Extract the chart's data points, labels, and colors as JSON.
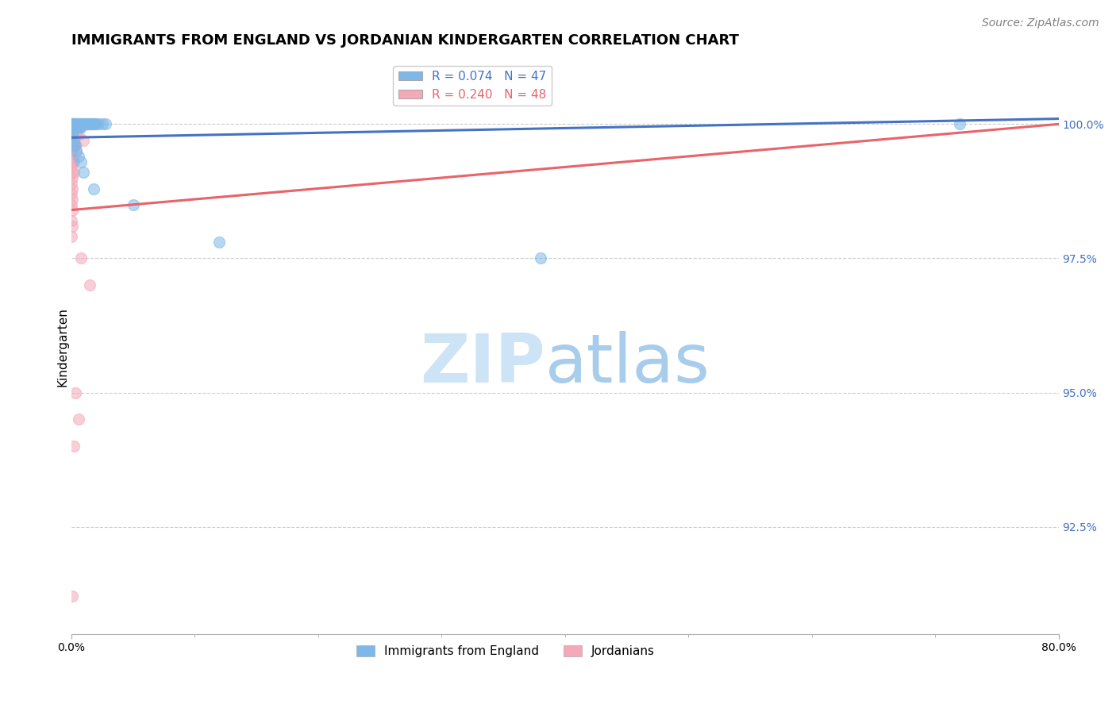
{
  "title": "IMMIGRANTS FROM ENGLAND VS JORDANIAN KINDERGARTEN CORRELATION CHART",
  "source_text": "Source: ZipAtlas.com",
  "ylabel": "Kindergarten",
  "ytick_labels": [
    "100.0%",
    "97.5%",
    "95.0%",
    "92.5%"
  ],
  "ytick_values": [
    1.0,
    0.975,
    0.95,
    0.925
  ],
  "xlim": [
    0.0,
    0.8
  ],
  "ylim": [
    0.905,
    1.012
  ],
  "legend_blue_label": "R = 0.074   N = 47",
  "legend_pink_label": "R = 0.240   N = 48",
  "legend1_label": "Immigrants from England",
  "legend2_label": "Jordanians",
  "blue_scatter": [
    [
      0.0,
      1.0
    ],
    [
      0.001,
      1.0
    ],
    [
      0.001,
      0.9995
    ],
    [
      0.002,
      1.0
    ],
    [
      0.002,
      0.9995
    ],
    [
      0.003,
      1.0
    ],
    [
      0.003,
      0.9995
    ],
    [
      0.004,
      1.0
    ],
    [
      0.004,
      0.9995
    ],
    [
      0.005,
      1.0
    ],
    [
      0.005,
      0.9995
    ],
    [
      0.006,
      1.0
    ],
    [
      0.006,
      0.9995
    ],
    [
      0.007,
      1.0
    ],
    [
      0.007,
      0.9995
    ],
    [
      0.008,
      1.0
    ],
    [
      0.008,
      0.9995
    ],
    [
      0.009,
      1.0
    ],
    [
      0.01,
      1.0
    ],
    [
      0.011,
      1.0
    ],
    [
      0.012,
      1.0
    ],
    [
      0.013,
      1.0
    ],
    [
      0.014,
      1.0
    ],
    [
      0.015,
      1.0
    ],
    [
      0.016,
      1.0
    ],
    [
      0.017,
      1.0
    ],
    [
      0.018,
      1.0
    ],
    [
      0.019,
      1.0
    ],
    [
      0.02,
      1.0
    ],
    [
      0.022,
      1.0
    ],
    [
      0.025,
      1.0
    ],
    [
      0.028,
      1.0
    ],
    [
      0.001,
      0.998
    ],
    [
      0.002,
      0.997
    ],
    [
      0.003,
      0.996
    ],
    [
      0.004,
      0.995
    ],
    [
      0.006,
      0.994
    ],
    [
      0.008,
      0.993
    ],
    [
      0.01,
      0.991
    ],
    [
      0.018,
      0.988
    ],
    [
      0.05,
      0.985
    ],
    [
      0.12,
      0.978
    ],
    [
      0.38,
      0.975
    ],
    [
      0.72,
      1.0
    ],
    [
      0.0,
      0.999
    ],
    [
      0.001,
      0.998
    ],
    [
      0.002,
      0.996
    ]
  ],
  "pink_scatter": [
    [
      0.0,
      1.0
    ],
    [
      0.0,
      0.9995
    ],
    [
      0.0,
      0.999
    ],
    [
      0.0,
      0.998
    ],
    [
      0.0,
      0.997
    ],
    [
      0.0,
      0.996
    ],
    [
      0.0,
      0.995
    ],
    [
      0.0,
      0.994
    ],
    [
      0.0,
      0.993
    ],
    [
      0.0,
      0.992
    ],
    [
      0.0,
      0.991
    ],
    [
      0.0,
      0.989
    ],
    [
      0.0,
      0.987
    ],
    [
      0.0,
      0.985
    ],
    [
      0.0,
      0.982
    ],
    [
      0.0,
      0.979
    ],
    [
      0.001,
      1.0
    ],
    [
      0.001,
      0.999
    ],
    [
      0.001,
      0.998
    ],
    [
      0.001,
      0.997
    ],
    [
      0.001,
      0.996
    ],
    [
      0.001,
      0.994
    ],
    [
      0.001,
      0.993
    ],
    [
      0.001,
      0.99
    ],
    [
      0.001,
      0.988
    ],
    [
      0.001,
      0.986
    ],
    [
      0.001,
      0.984
    ],
    [
      0.001,
      0.981
    ],
    [
      0.002,
      1.0
    ],
    [
      0.002,
      0.999
    ],
    [
      0.002,
      0.997
    ],
    [
      0.002,
      0.996
    ],
    [
      0.002,
      0.993
    ],
    [
      0.002,
      0.991
    ],
    [
      0.003,
      0.999
    ],
    [
      0.003,
      0.998
    ],
    [
      0.003,
      0.996
    ],
    [
      0.004,
      0.998
    ],
    [
      0.004,
      0.995
    ],
    [
      0.005,
      0.999
    ],
    [
      0.006,
      0.998
    ],
    [
      0.01,
      0.997
    ],
    [
      0.008,
      0.975
    ],
    [
      0.015,
      0.97
    ],
    [
      0.003,
      0.95
    ],
    [
      0.006,
      0.945
    ],
    [
      0.002,
      0.94
    ],
    [
      0.001,
      0.912
    ]
  ],
  "blue_line_x": [
    0.0,
    0.8
  ],
  "blue_line_y": [
    0.9975,
    1.001
  ],
  "pink_line_x": [
    0.0,
    0.8
  ],
  "pink_line_y": [
    0.984,
    1.0
  ],
  "marker_size": 100,
  "blue_color": "#7eb8e8",
  "pink_color": "#f4a8b8",
  "blue_line_color": "#4472c4",
  "pink_line_color": "#e8636a",
  "watermark_zip_color": "#c8dff0",
  "watermark_atlas_color": "#a0c8e8",
  "grid_color": "#cccccc",
  "title_fontsize": 13,
  "axis_label_fontsize": 11,
  "tick_label_fontsize": 10,
  "legend_fontsize": 11,
  "source_fontsize": 10
}
